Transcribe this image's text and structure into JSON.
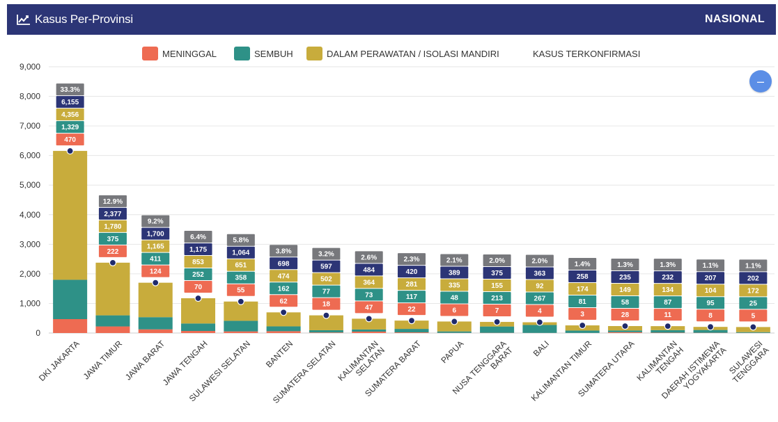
{
  "header": {
    "title": "Kasus Per-Provinsi",
    "scope": "NASIONAL",
    "icon": "line-chart-icon"
  },
  "legend": [
    {
      "key": "meninggal",
      "label": "MENINGGAL",
      "color": "#ee6b52"
    },
    {
      "key": "sembuh",
      "label": "SEMBUH",
      "color": "#2e9187"
    },
    {
      "key": "perawatan",
      "label": "DALAM PERAWATAN / ISOLASI MANDIRI",
      "color": "#c8ac3c"
    },
    {
      "key": "terkonfirmasi",
      "label": "KASUS TERKONFIRMASI",
      "color": "#2c3576"
    }
  ],
  "collapse_button": {
    "label": "–",
    "icon": "minus-icon"
  },
  "chart_data": {
    "type": "bar",
    "stacked": true,
    "ylim": [
      0,
      9000
    ],
    "yticks": [
      "0",
      "1,000",
      "2,000",
      "3,000",
      "4,000",
      "5,000",
      "6,000",
      "7,000",
      "8,000",
      "9,000"
    ],
    "grid": true,
    "legend_position": "top-center",
    "categories": [
      [
        "DKI JAKARTA"
      ],
      [
        "JAWA TIMUR"
      ],
      [
        "JAWA BARAT"
      ],
      [
        "JAWA TENGAH"
      ],
      [
        "SULAWESI SELATAN"
      ],
      [
        "BANTEN"
      ],
      [
        "SUMATERA SELATAN"
      ],
      [
        "KALIMANTAN",
        "SELATAN"
      ],
      [
        "SUMATERA BARAT"
      ],
      [
        "PAPUA"
      ],
      [
        "NUSA TENGGARA",
        "BARAT"
      ],
      [
        "BALI"
      ],
      [
        "KALIMANTAN TIMUR"
      ],
      [
        "SUMATERA UTARA"
      ],
      [
        "KALIMANTAN",
        "TENGAH"
      ],
      [
        "DAERAH ISTIMEWA",
        "YOGYAKARTA"
      ],
      [
        "SULAWESI",
        "TENGGARA"
      ]
    ],
    "series": [
      {
        "name": "MENINGGAL",
        "color": "#ee6b52",
        "labels": [
          "470",
          "222",
          "124",
          "70",
          "55",
          "62",
          "18",
          "47",
          "22",
          "6",
          "7",
          "4",
          "3",
          "28",
          "11",
          "8",
          "5"
        ]
      },
      {
        "name": "SEMBUH",
        "color": "#2e9187",
        "labels": [
          "1,329",
          "375",
          "411",
          "252",
          "358",
          "162",
          "77",
          "73",
          "117",
          "48",
          "213",
          "267",
          "81",
          "58",
          "87",
          "95",
          "25"
        ]
      },
      {
        "name": "DALAM PERAWATAN / ISOLASI MANDIRI",
        "color": "#c8ac3c",
        "labels": [
          "4,356",
          "1,780",
          "1,165",
          "853",
          "651",
          "474",
          "502",
          "364",
          "281",
          "335",
          "155",
          "92",
          "174",
          "149",
          "134",
          "104",
          "172"
        ]
      },
      {
        "name": "KASUS TERKONFIRMASI",
        "color": "#2c3576",
        "labels": [
          "6,155",
          "2,377",
          "1,700",
          "1,175",
          "1,064",
          "698",
          "597",
          "484",
          "420",
          "389",
          "375",
          "363",
          "258",
          "235",
          "232",
          "207",
          "202"
        ]
      }
    ],
    "meninggal": [
      470,
      222,
      124,
      70,
      55,
      62,
      18,
      47,
      22,
      6,
      7,
      4,
      3,
      28,
      11,
      8,
      5
    ],
    "sembuh": [
      1329,
      375,
      411,
      252,
      358,
      162,
      77,
      73,
      117,
      48,
      213,
      267,
      81,
      58,
      87,
      95,
      25
    ],
    "perawatan": [
      4356,
      1780,
      1165,
      853,
      651,
      474,
      502,
      364,
      281,
      335,
      155,
      92,
      174,
      149,
      134,
      104,
      172
    ],
    "terkonfirmasi": [
      6155,
      2377,
      1700,
      1175,
      1064,
      698,
      597,
      484,
      420,
      389,
      375,
      363,
      258,
      235,
      232,
      207,
      202
    ],
    "percent": [
      "33.3%",
      "12.9%",
      "9.2%",
      "6.4%",
      "5.8%",
      "3.8%",
      "3.2%",
      "2.6%",
      "2.3%",
      "2.1%",
      "2.0%",
      "2.0%",
      "1.4%",
      "1.3%",
      "1.3%",
      "1.1%",
      "1.1%"
    ],
    "colors": {
      "percent_label": "#77787c",
      "dot": "#1f2a6b"
    }
  }
}
